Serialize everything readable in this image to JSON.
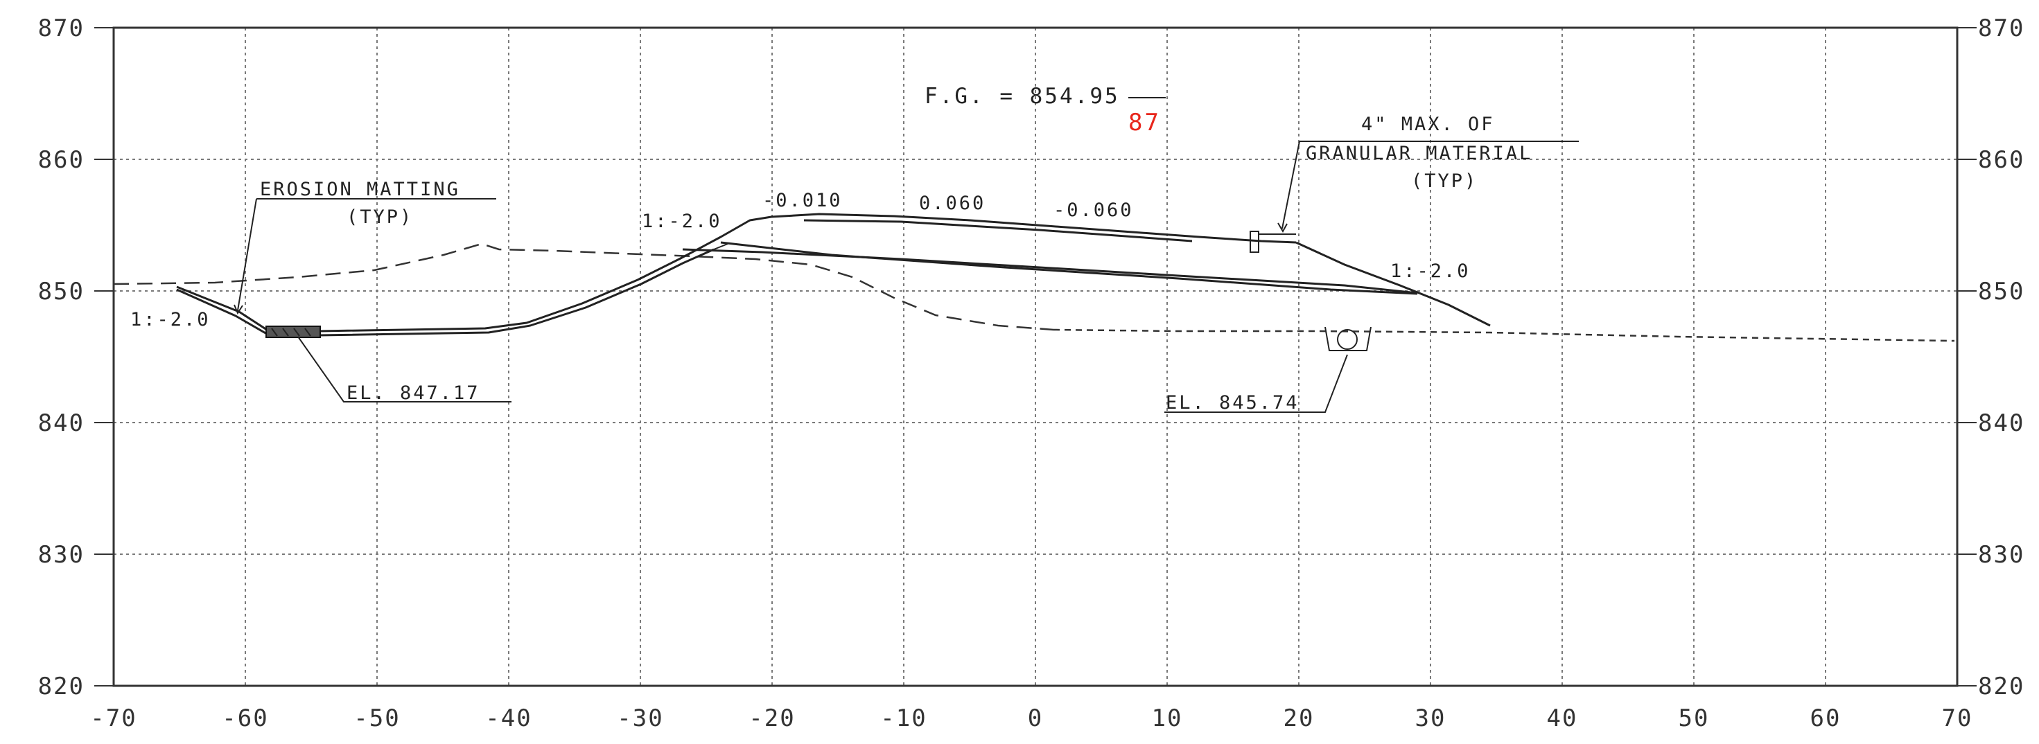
{
  "drawing": {
    "x_ticks": [
      "-70",
      "-60",
      "-50",
      "-40",
      "-30",
      "-20",
      "-10",
      "0",
      "10",
      "20",
      "30",
      "40",
      "50",
      "60",
      "70"
    ],
    "y_ticks": [
      "870",
      "860",
      "850",
      "840",
      "830",
      "820"
    ],
    "finish_grade": {
      "prefix": "F.G. = 854.",
      "struck": "95",
      "correction": "87",
      "correction_color": "#e8261c"
    },
    "erosion_matting": {
      "line1": "EROSION MATTING",
      "line2": "(TYP)"
    },
    "granular_material": {
      "line1": "4\" MAX. OF",
      "line2": "GRANULAR MATERIAL",
      "line3": "(TYP)"
    },
    "slope_left_outer": "1:-2.0",
    "slope_left_inner": "1:-2.0",
    "slope_right": "1:-2.0",
    "cross_slopes": [
      "-0.010",
      "0.060",
      "-0.060"
    ],
    "elevation_left": "EL. 847.17",
    "elevation_right": "EL. 845.74"
  }
}
